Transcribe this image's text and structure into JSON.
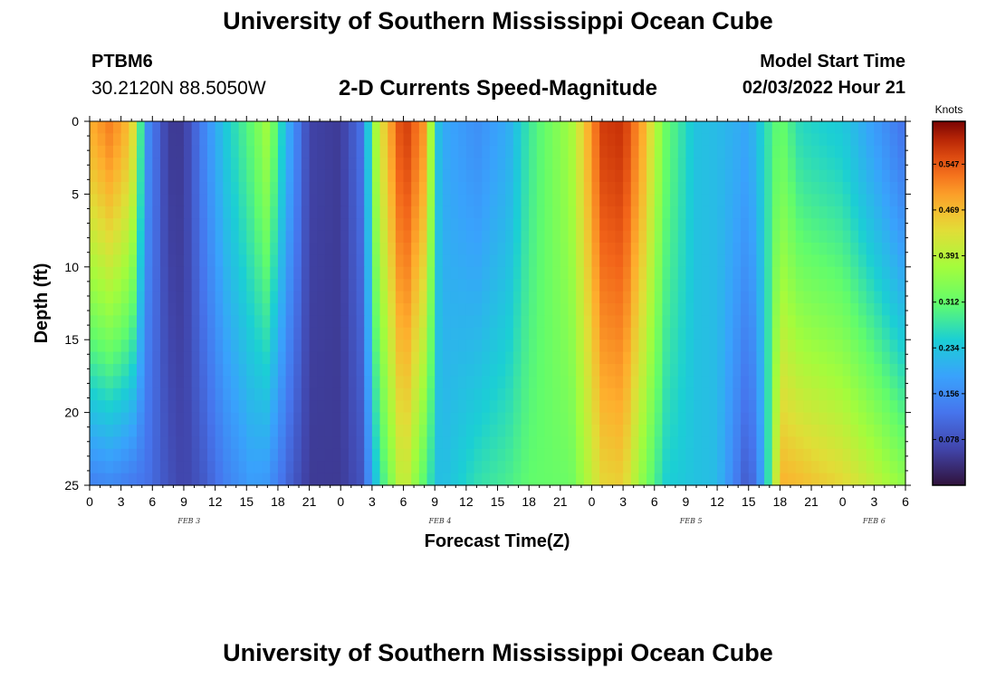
{
  "header": {
    "title": "University of Southern Mississippi Ocean Cube",
    "station": "PTBM6",
    "coords": "30.2120N  88.5050W",
    "subtitle": "2-D Currents Speed-Magnitude",
    "start_label": "Model Start Time",
    "start_time": "02/03/2022 Hour 21"
  },
  "footer": {
    "title": "University of Southern Mississippi Ocean Cube"
  },
  "chart_data": {
    "type": "heatmap",
    "xlabel": "Forecast Time(Z)",
    "ylabel": "Depth (ft)",
    "x_hours_range": [
      0,
      78
    ],
    "x_tick_labels": [
      "0",
      "3",
      "6",
      "9",
      "12",
      "15",
      "18",
      "21",
      "0",
      "3",
      "6",
      "9",
      "12",
      "15",
      "18",
      "21",
      "0",
      "3",
      "6",
      "9",
      "12",
      "15",
      "18",
      "21",
      "0",
      "3",
      "6"
    ],
    "date_labels": [
      {
        "label": "FEB 3",
        "hour": 9.5
      },
      {
        "label": "FEB 4",
        "hour": 33.5
      },
      {
        "label": "FEB 5",
        "hour": 57.5
      },
      {
        "label": "FEB 6",
        "hour": 75
      }
    ],
    "ylim": [
      0,
      25
    ],
    "y_ticks": [
      0,
      5,
      10,
      15,
      20,
      25
    ],
    "colorbar": {
      "title": "Knots",
      "ticks": [
        0.547,
        0.469,
        0.391,
        0.312,
        0.234,
        0.156,
        0.078
      ],
      "range": [
        0,
        0.62
      ]
    },
    "speed_profiles_knots": [
      {
        "hour": 0,
        "surface": 0.48,
        "bottom": 0.14
      },
      {
        "hour": 2,
        "surface": 0.52,
        "bottom": 0.15
      },
      {
        "hour": 4,
        "surface": 0.46,
        "bottom": 0.13
      },
      {
        "hour": 5.5,
        "surface": 0.16,
        "bottom": 0.12
      },
      {
        "hour": 7.5,
        "surface": 0.05,
        "bottom": 0.08
      },
      {
        "hour": 9,
        "surface": 0.05,
        "bottom": 0.06
      },
      {
        "hour": 11,
        "surface": 0.15,
        "bottom": 0.09
      },
      {
        "hour": 13,
        "surface": 0.24,
        "bottom": 0.14
      },
      {
        "hour": 15.5,
        "surface": 0.31,
        "bottom": 0.18
      },
      {
        "hour": 17,
        "surface": 0.37,
        "bottom": 0.17
      },
      {
        "hour": 19,
        "surface": 0.2,
        "bottom": 0.1
      },
      {
        "hour": 21,
        "surface": 0.06,
        "bottom": 0.05
      },
      {
        "hour": 24,
        "surface": 0.05,
        "bottom": 0.05
      },
      {
        "hour": 26,
        "surface": 0.12,
        "bottom": 0.08
      },
      {
        "hour": 27.5,
        "surface": 0.4,
        "bottom": 0.25
      },
      {
        "hour": 30,
        "surface": 0.58,
        "bottom": 0.42
      },
      {
        "hour": 32,
        "surface": 0.5,
        "bottom": 0.3
      },
      {
        "hour": 33.5,
        "surface": 0.2,
        "bottom": 0.22
      },
      {
        "hour": 37,
        "surface": 0.16,
        "bottom": 0.27
      },
      {
        "hour": 40,
        "surface": 0.2,
        "bottom": 0.29
      },
      {
        "hour": 42,
        "surface": 0.28,
        "bottom": 0.31
      },
      {
        "hour": 46,
        "surface": 0.37,
        "bottom": 0.32
      },
      {
        "hour": 49,
        "surface": 0.57,
        "bottom": 0.44
      },
      {
        "hour": 51,
        "surface": 0.58,
        "bottom": 0.45
      },
      {
        "hour": 53,
        "surface": 0.48,
        "bottom": 0.34
      },
      {
        "hour": 55,
        "surface": 0.32,
        "bottom": 0.25
      },
      {
        "hour": 58,
        "surface": 0.23,
        "bottom": 0.23
      },
      {
        "hour": 60,
        "surface": 0.22,
        "bottom": 0.22
      },
      {
        "hour": 63,
        "surface": 0.19,
        "bottom": 0.08
      },
      {
        "hour": 64.5,
        "surface": 0.26,
        "bottom": 0.2
      },
      {
        "hour": 66,
        "surface": 0.32,
        "bottom": 0.48
      },
      {
        "hour": 68,
        "surface": 0.26,
        "bottom": 0.47
      },
      {
        "hour": 72,
        "surface": 0.24,
        "bottom": 0.44
      },
      {
        "hour": 75,
        "surface": 0.18,
        "bottom": 0.4
      },
      {
        "hour": 78,
        "surface": 0.12,
        "bottom": 0.35
      }
    ]
  }
}
